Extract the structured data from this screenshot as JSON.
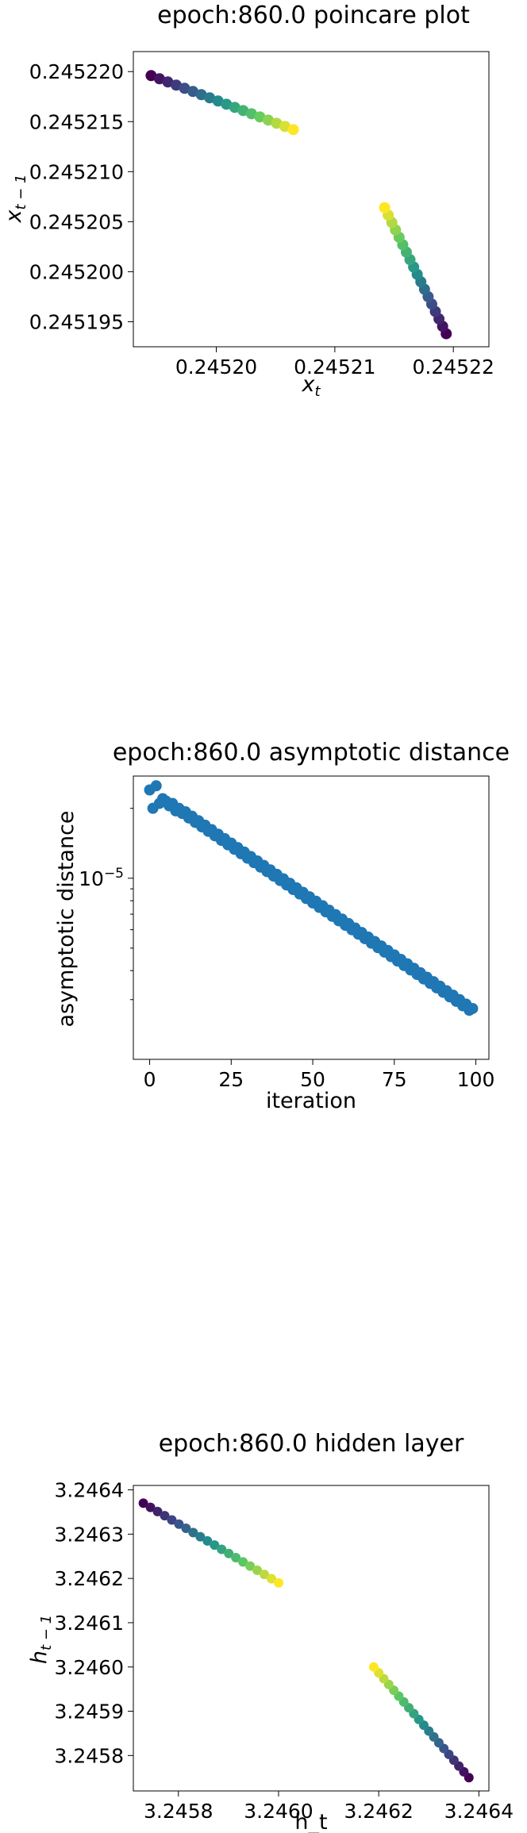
{
  "chart_data": [
    {
      "type": "scatter",
      "title": "epoch:860.0 poincare plot",
      "xlabel": "x_t",
      "ylabel": "x_{t-1}",
      "xlim": [
        0.245193,
        0.245223
      ],
      "ylim": [
        0.2451925,
        0.245222
      ],
      "xticks": [
        0.2452,
        0.24521,
        0.24522
      ],
      "xtick_labels": [
        "0.24520",
        "0.24521",
        "0.24522"
      ],
      "yticks": [
        0.245195,
        0.2452,
        0.245205,
        0.24521,
        0.245215,
        0.24522
      ],
      "ytick_labels": [
        "0.245195",
        "0.245200",
        "0.245205",
        "0.245210",
        "0.245215",
        "0.245220"
      ],
      "colormap": "viridis",
      "segments": [
        {
          "x": [
            0.2451945,
            0.2452065
          ],
          "y": [
            0.2452196,
            0.2452142
          ],
          "n": 18
        },
        {
          "x": [
            0.2452194,
            0.2452142
          ],
          "y": [
            0.2451938,
            0.2452064
          ],
          "n": 18
        }
      ]
    },
    {
      "type": "scatter",
      "title": "epoch:860.0 asymptotic distance",
      "xlabel": "iteration",
      "ylabel": "asymptotic distance",
      "xlim": [
        -5,
        104
      ],
      "ylim_log": [
        -5.78,
        -4.56
      ],
      "yscale": "log",
      "xticks": [
        0,
        25,
        50,
        75,
        100
      ],
      "xtick_labels": [
        "0",
        "25",
        "50",
        "75",
        "100"
      ],
      "ytick_major_label": "10",
      "ytick_major_exponent": "−5",
      "color": "#1f77b4",
      "points": [
        [
          0,
          2.4e-05
        ],
        [
          1,
          2e-05
        ],
        [
          2,
          2.5e-05
        ],
        [
          3,
          2.1e-05
        ],
        [
          4,
          2.2e-05
        ],
        [
          5,
          2.15e-05
        ],
        [
          6,
          2.05e-05
        ],
        [
          7,
          2.1e-05
        ],
        [
          8,
          1.95e-05
        ],
        [
          9,
          2e-05
        ]
      ],
      "trend": {
        "x_start": 10,
        "x_end": 98,
        "y_start": 1.9e-05,
        "y_end": 2.7e-06,
        "step": 2
      }
    },
    {
      "type": "scatter",
      "title": "epoch:860.0 hidden layer",
      "xlabel": "h_t",
      "ylabel": "h_{t-1}",
      "xlim": [
        3.24571,
        3.24642
      ],
      "ylim": [
        3.24572,
        3.24641
      ],
      "xticks": [
        3.2458,
        3.246,
        3.2462,
        3.2464
      ],
      "xtick_labels": [
        "3.2458",
        "3.2460",
        "3.2462",
        "3.2464"
      ],
      "yticks": [
        3.2458,
        3.2459,
        3.246,
        3.2461,
        3.2462,
        3.2463,
        3.2464
      ],
      "ytick_labels": [
        "3.2458",
        "3.2459",
        "3.2460",
        "3.2461",
        "3.2462",
        "3.2463",
        "3.2464"
      ],
      "colormap": "viridis",
      "segments": [
        {
          "x": [
            3.24573,
            3.246
          ],
          "y": [
            3.24637,
            3.24619
          ],
          "n": 20
        },
        {
          "x": [
            3.24638,
            3.24619
          ],
          "y": [
            3.24575,
            3.246
          ],
          "n": 20
        }
      ]
    }
  ]
}
